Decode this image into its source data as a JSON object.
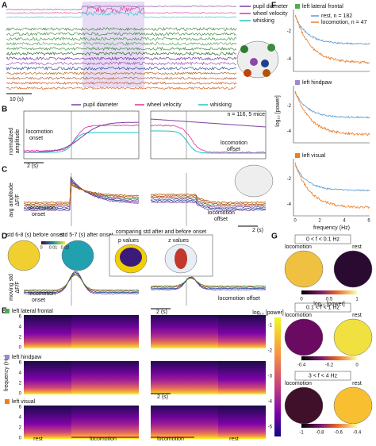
{
  "panels": {
    "A": {
      "label": "A",
      "legend": [
        "pupil diameter",
        "wheel velocity",
        "whisking"
      ],
      "scale": "10 (s)"
    },
    "B": {
      "label": "B",
      "legend": [
        "pupil diameter",
        "wheel velocity",
        "whisking"
      ],
      "n": "n = 116, 5 mice",
      "ylabel": [
        "normalized",
        "amplitude"
      ],
      "onset": [
        "locomotion",
        "onset"
      ],
      "offset": [
        "locomotion",
        "offset"
      ],
      "scale": "2 (s)"
    },
    "C": {
      "label": "C",
      "ylabel": [
        "avg amplitude",
        "ΔF/F"
      ],
      "onset": [
        "locomotion",
        "onset"
      ],
      "offset": [
        "locomotion",
        "offset"
      ],
      "scale": "2 (s)"
    },
    "D": {
      "label": "D",
      "map1": "std 6-8 (s) before onset",
      "map2": "std 5-7 (s) after onset",
      "compare": "comparing std after and before onset",
      "p": "p values",
      "z": "z values",
      "cbar": [
        "0",
        "0.01",
        "0.02"
      ],
      "ylabel": [
        "moving std",
        "ΔF/F"
      ],
      "onset": [
        "locomotion",
        "onset"
      ],
      "offset": "locomotion offset",
      "scale": "2 (s)"
    },
    "E": {
      "label": "E",
      "regions": [
        "left lateral frontal",
        "left hindpaw",
        "left visual"
      ],
      "ylabel": "frequency (Hz)",
      "yticks": [
        "0",
        "2",
        "4",
        "6"
      ],
      "cbar_label": "log₁₀ [power]",
      "cbar_ticks": [
        "-1",
        "-2",
        "-3",
        "-4",
        "-5"
      ],
      "xlabels": [
        "rest",
        "locomotion",
        "locomotion",
        "rest"
      ],
      "scale": "2 (s)"
    },
    "F": {
      "label": "F",
      "regions": [
        "left lateral frontal",
        "left hindpaw",
        "left visual"
      ],
      "legend": [
        "rest, n = 182",
        "locomotion, n = 47"
      ],
      "ylabel": "log₁₀ [power]",
      "yticks": [
        "-2",
        "-4"
      ],
      "xticks": [
        "0",
        "2",
        "4",
        "6"
      ],
      "xlabel": "frequency (Hz)"
    },
    "G": {
      "label": "G",
      "bands": [
        "0 < f < 0.1 Hz",
        "0.1 < f < 1 Hz",
        "3 < f < 4 Hz"
      ],
      "conds": [
        "locomotion",
        "rest"
      ],
      "cbars": [
        [
          "0",
          "0.5",
          "1"
        ],
        [
          "-0.4",
          "-0.2",
          "0"
        ],
        [
          "-1",
          "-0.8",
          "-0.6",
          "-0.4"
        ]
      ],
      "cbar_label": "log₁₀ [power]"
    }
  }
}
